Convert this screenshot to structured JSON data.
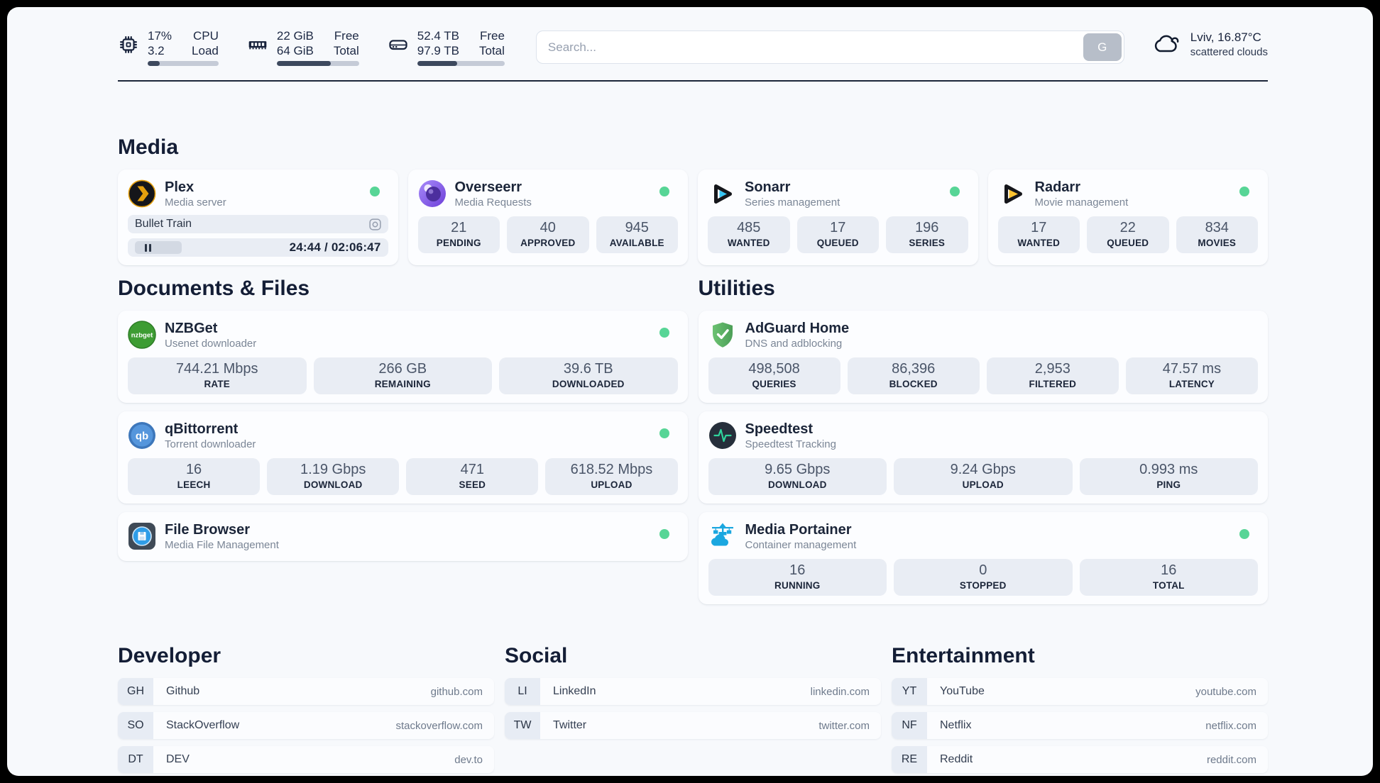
{
  "colors": {
    "status_online": "#57d596",
    "accent_dark": "#1c2639",
    "stat_bg": "#e9edf4"
  },
  "header": {
    "resources": [
      {
        "icon": "cpu",
        "rows": [
          {
            "value": "17%",
            "label": "CPU"
          },
          {
            "value": "3.2",
            "label": "Load"
          }
        ],
        "progress": 17
      },
      {
        "icon": "memory",
        "rows": [
          {
            "value": "22 GiB",
            "label": "Free"
          },
          {
            "value": "64 GiB",
            "label": "Total"
          }
        ],
        "progress": 66
      },
      {
        "icon": "disk",
        "rows": [
          {
            "value": "52.4 TB",
            "label": "Free"
          },
          {
            "value": "97.9 TB",
            "label": "Total"
          }
        ],
        "progress": 46
      }
    ],
    "search": {
      "placeholder": "Search...",
      "provider": "G"
    },
    "weather": {
      "summary": "Lviv, 16.87°C",
      "condition": "scattered clouds"
    }
  },
  "sections": [
    {
      "id": "media",
      "title": "Media",
      "cards": [
        {
          "icon": "plex",
          "name": "Plex",
          "description": "Media server",
          "online": true,
          "player": {
            "title": "Bullet Train",
            "time": "24:44 / 02:06:47"
          }
        },
        {
          "icon": "overseerr",
          "name": "Overseerr",
          "description": "Media Requests",
          "online": true,
          "stats": [
            {
              "value": "21",
              "label": "PENDING"
            },
            {
              "value": "40",
              "label": "APPROVED"
            },
            {
              "value": "945",
              "label": "AVAILABLE"
            }
          ]
        },
        {
          "icon": "sonarr",
          "name": "Sonarr",
          "description": "Series management",
          "online": true,
          "stats": [
            {
              "value": "485",
              "label": "WANTED"
            },
            {
              "value": "17",
              "label": "QUEUED"
            },
            {
              "value": "196",
              "label": "SERIES"
            }
          ]
        },
        {
          "icon": "radarr",
          "name": "Radarr",
          "description": "Movie management",
          "online": true,
          "stats": [
            {
              "value": "17",
              "label": "WANTED"
            },
            {
              "value": "22",
              "label": "QUEUED"
            },
            {
              "value": "834",
              "label": "MOVIES"
            }
          ]
        }
      ]
    },
    {
      "id": "documents",
      "title": "Documents & Files",
      "cards": [
        {
          "icon": "nzbget",
          "name": "NZBGet",
          "description": "Usenet downloader",
          "online": true,
          "stats": [
            {
              "value": "744.21 Mbps",
              "label": "RATE"
            },
            {
              "value": "266 GB",
              "label": "REMAINING"
            },
            {
              "value": "39.6 TB",
              "label": "DOWNLOADED"
            }
          ]
        },
        {
          "icon": "qbittorrent",
          "name": "qBittorrent",
          "description": "Torrent downloader",
          "online": true,
          "stats": [
            {
              "value": "16",
              "label": "LEECH"
            },
            {
              "value": "1.19 Gbps",
              "label": "DOWNLOAD"
            },
            {
              "value": "471",
              "label": "SEED"
            },
            {
              "value": "618.52 Mbps",
              "label": "UPLOAD"
            }
          ]
        },
        {
          "icon": "filebrowser",
          "name": "File Browser",
          "description": "Media File Management",
          "online": true
        }
      ]
    },
    {
      "id": "utilities",
      "title": "Utilities",
      "cards": [
        {
          "icon": "adguard",
          "name": "AdGuard Home",
          "description": "DNS and adblocking",
          "online": false,
          "stats": [
            {
              "value": "498,508",
              "label": "QUERIES"
            },
            {
              "value": "86,396",
              "label": "BLOCKED"
            },
            {
              "value": "2,953",
              "label": "FILTERED"
            },
            {
              "value": "47.57 ms",
              "label": "LATENCY"
            }
          ]
        },
        {
          "icon": "speedtest",
          "name": "Speedtest",
          "description": "Speedtest Tracking",
          "online": false,
          "stats": [
            {
              "value": "9.65 Gbps",
              "label": "DOWNLOAD"
            },
            {
              "value": "9.24 Gbps",
              "label": "UPLOAD"
            },
            {
              "value": "0.993 ms",
              "label": "PING"
            }
          ]
        },
        {
          "icon": "portainer",
          "name": "Media Portainer",
          "description": "Container management",
          "online": true,
          "stats": [
            {
              "value": "16",
              "label": "RUNNING"
            },
            {
              "value": "0",
              "label": "STOPPED"
            },
            {
              "value": "16",
              "label": "TOTAL"
            }
          ]
        }
      ]
    }
  ],
  "bookmarks": [
    {
      "title": "Developer",
      "items": [
        {
          "abbr": "GH",
          "name": "Github",
          "url": "github.com"
        },
        {
          "abbr": "SO",
          "name": "StackOverflow",
          "url": "stackoverflow.com"
        },
        {
          "abbr": "DT",
          "name": "DEV",
          "url": "dev.to"
        }
      ]
    },
    {
      "title": "Social",
      "items": [
        {
          "abbr": "LI",
          "name": "LinkedIn",
          "url": "linkedin.com"
        },
        {
          "abbr": "TW",
          "name": "Twitter",
          "url": "twitter.com"
        }
      ]
    },
    {
      "title": "Entertainment",
      "items": [
        {
          "abbr": "YT",
          "name": "YouTube",
          "url": "youtube.com"
        },
        {
          "abbr": "NF",
          "name": "Netflix",
          "url": "netflix.com"
        },
        {
          "abbr": "RE",
          "name": "Reddit",
          "url": "reddit.com"
        }
      ]
    }
  ]
}
